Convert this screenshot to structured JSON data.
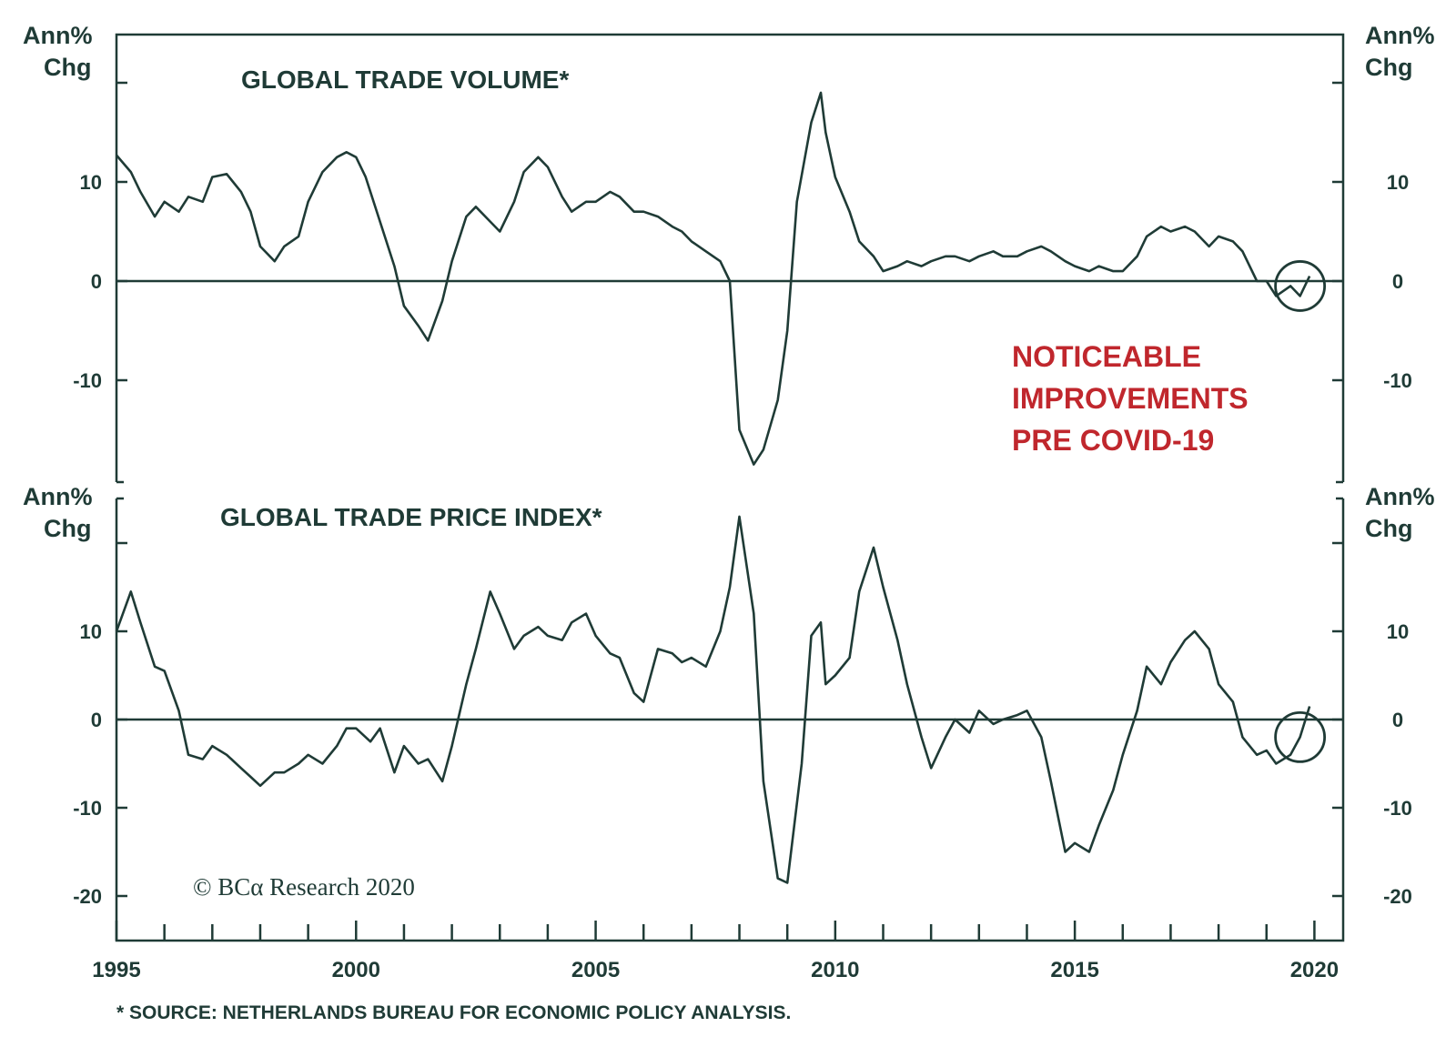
{
  "footnote": "* SOURCE: NETHERLANDS BUREAU FOR ECONOMIC POLICY ANALYSIS.",
  "copyright": "© BCα Research 2020",
  "colors": {
    "line": "#1f3b36",
    "annotation": "#c0272d",
    "background": "#ffffff"
  },
  "chart_data": [
    {
      "type": "line",
      "title": "GLOBAL TRADE VOLUME*",
      "ylabel_left": [
        "Ann%",
        "Chg"
      ],
      "ylabel_right": [
        "Ann%",
        "Chg"
      ],
      "ylim": [
        -20,
        25
      ],
      "yticks": [
        -10,
        0,
        10
      ],
      "xlim": [
        1995,
        2020.6
      ],
      "xticks": [
        1995,
        2000,
        2005,
        2010,
        2015,
        2020
      ],
      "zero_line": true,
      "annotation": [
        "NOTICEABLE",
        "IMPROVEMENTS",
        "PRE COVID-19"
      ],
      "highlight": {
        "type": "circle",
        "x": 2019.7,
        "y": -0.5
      },
      "series": [
        {
          "x": [
            1995.0,
            1995.3,
            1995.5,
            1995.8,
            1996.0,
            1996.3,
            1996.5,
            1996.8,
            1997.0,
            1997.3,
            1997.6,
            1997.8,
            1998.0,
            1998.3,
            1998.5,
            1998.8,
            1999.0,
            1999.3,
            1999.6,
            1999.8,
            2000.0,
            2000.2,
            2000.5,
            2000.8,
            2001.0,
            2001.3,
            2001.5,
            2001.8,
            2002.0,
            2002.3,
            2002.5,
            2002.8,
            2003.0,
            2003.3,
            2003.5,
            2003.8,
            2004.0,
            2004.3,
            2004.5,
            2004.8,
            2005.0,
            2005.3,
            2005.5,
            2005.8,
            2006.0,
            2006.3,
            2006.6,
            2006.8,
            2007.0,
            2007.3,
            2007.6,
            2007.8,
            2008.0,
            2008.3,
            2008.5,
            2008.8,
            2009.0,
            2009.2,
            2009.5,
            2009.7,
            2009.8,
            2010.0,
            2010.3,
            2010.5,
            2010.8,
            2011.0,
            2011.3,
            2011.5,
            2011.8,
            2012.0,
            2012.3,
            2012.5,
            2012.8,
            2013.0,
            2013.3,
            2013.5,
            2013.8,
            2014.0,
            2014.3,
            2014.5,
            2014.8,
            2015.0,
            2015.3,
            2015.5,
            2015.8,
            2016.0,
            2016.3,
            2016.5,
            2016.8,
            2017.0,
            2017.3,
            2017.5,
            2017.8,
            2018.0,
            2018.3,
            2018.5,
            2018.8,
            2019.0,
            2019.2,
            2019.5,
            2019.7,
            2019.9
          ],
          "values": [
            12.7,
            11.0,
            9.0,
            6.5,
            8.0,
            7.0,
            8.5,
            8.0,
            10.5,
            10.8,
            9.0,
            7.0,
            3.5,
            2.0,
            3.5,
            4.5,
            8.0,
            11.0,
            12.5,
            13.0,
            12.5,
            10.5,
            6.0,
            1.5,
            -2.5,
            -4.5,
            -6.0,
            -2.0,
            2.0,
            6.5,
            7.5,
            6.0,
            5.0,
            8.0,
            11.0,
            12.5,
            11.5,
            8.5,
            7.0,
            8.0,
            8.0,
            9.0,
            8.5,
            7.0,
            7.0,
            6.5,
            5.5,
            5.0,
            4.0,
            3.0,
            2.0,
            0.0,
            -15.0,
            -18.5,
            -17.0,
            -12.0,
            -5.0,
            8.0,
            16.0,
            19.0,
            15.0,
            10.5,
            7.0,
            4.0,
            2.5,
            1.0,
            1.5,
            2.0,
            1.5,
            2.0,
            2.5,
            2.5,
            2.0,
            2.5,
            3.0,
            2.5,
            2.5,
            3.0,
            3.5,
            3.0,
            2.0,
            1.5,
            1.0,
            1.5,
            1.0,
            1.0,
            2.5,
            4.5,
            5.5,
            5.0,
            5.5,
            5.0,
            3.5,
            4.5,
            4.0,
            3.0,
            0.0,
            0.0,
            -1.5,
            -0.5,
            -1.5,
            0.5
          ]
        }
      ]
    },
    {
      "type": "line",
      "title": "GLOBAL TRADE PRICE INDEX*",
      "ylabel_left": [
        "Ann%",
        "Chg"
      ],
      "ylabel_right": [
        "Ann%",
        "Chg"
      ],
      "ylim": [
        -25,
        25
      ],
      "yticks": [
        -20,
        -10,
        0,
        10
      ],
      "xlim": [
        1995,
        2020.6
      ],
      "xticks": [
        1995,
        2000,
        2005,
        2010,
        2015,
        2020
      ],
      "zero_line": true,
      "highlight": {
        "type": "circle",
        "x": 2019.7,
        "y": -2.0
      },
      "series": [
        {
          "x": [
            1995.0,
            1995.3,
            1995.5,
            1995.8,
            1996.0,
            1996.3,
            1996.5,
            1996.8,
            1997.0,
            1997.3,
            1997.6,
            1997.8,
            1998.0,
            1998.3,
            1998.5,
            1998.8,
            1999.0,
            1999.3,
            1999.6,
            1999.8,
            2000.0,
            2000.3,
            2000.5,
            2000.8,
            2001.0,
            2001.3,
            2001.5,
            2001.8,
            2002.0,
            2002.3,
            2002.5,
            2002.8,
            2003.0,
            2003.3,
            2003.5,
            2003.8,
            2004.0,
            2004.3,
            2004.5,
            2004.8,
            2005.0,
            2005.3,
            2005.5,
            2005.8,
            2006.0,
            2006.3,
            2006.6,
            2006.8,
            2007.0,
            2007.3,
            2007.6,
            2007.8,
            2008.0,
            2008.3,
            2008.5,
            2008.8,
            2009.0,
            2009.3,
            2009.5,
            2009.7,
            2009.8,
            2010.0,
            2010.3,
            2010.5,
            2010.8,
            2011.0,
            2011.3,
            2011.5,
            2011.8,
            2012.0,
            2012.3,
            2012.5,
            2012.8,
            2013.0,
            2013.3,
            2013.5,
            2013.8,
            2014.0,
            2014.3,
            2014.5,
            2014.8,
            2015.0,
            2015.3,
            2015.5,
            2015.8,
            2016.0,
            2016.3,
            2016.5,
            2016.8,
            2017.0,
            2017.3,
            2017.5,
            2017.8,
            2018.0,
            2018.3,
            2018.5,
            2018.8,
            2019.0,
            2019.2,
            2019.5,
            2019.7,
            2019.9
          ],
          "values": [
            10.0,
            14.5,
            11.0,
            6.0,
            5.5,
            1.0,
            -4.0,
            -4.5,
            -3.0,
            -4.0,
            -5.5,
            -6.5,
            -7.5,
            -6.0,
            -6.0,
            -5.0,
            -4.0,
            -5.0,
            -3.0,
            -1.0,
            -1.0,
            -2.5,
            -1.0,
            -6.0,
            -3.0,
            -5.0,
            -4.5,
            -7.0,
            -3.0,
            4.0,
            8.0,
            14.5,
            12.0,
            8.0,
            9.5,
            10.5,
            9.5,
            9.0,
            11.0,
            12.0,
            9.5,
            7.5,
            7.0,
            3.0,
            2.0,
            8.0,
            7.5,
            6.5,
            7.0,
            6.0,
            10.0,
            15.0,
            23.0,
            12.0,
            -7.0,
            -18.0,
            -18.5,
            -5.0,
            9.5,
            11.0,
            4.0,
            5.0,
            7.0,
            14.5,
            19.5,
            15.0,
            9.0,
            4.0,
            -2.0,
            -5.5,
            -2.0,
            0.0,
            -1.5,
            1.0,
            -0.5,
            0.0,
            0.5,
            1.0,
            -2.0,
            -7.0,
            -15.0,
            -14.0,
            -15.0,
            -12.0,
            -8.0,
            -4.0,
            1.0,
            6.0,
            4.0,
            6.5,
            9.0,
            10.0,
            8.0,
            4.0,
            2.0,
            -2.0,
            -4.0,
            -3.5,
            -5.0,
            -4.0,
            -2.0,
            1.5
          ]
        }
      ]
    }
  ]
}
